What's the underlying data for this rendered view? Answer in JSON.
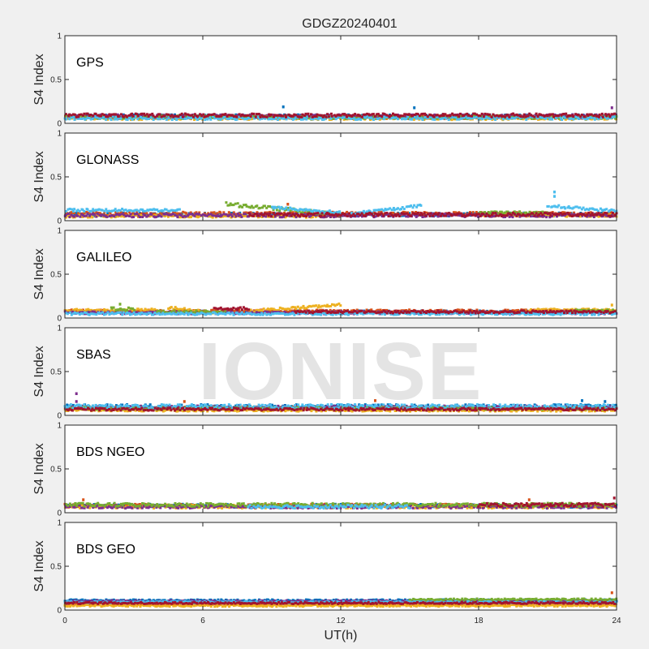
{
  "figure": {
    "title": "GDGZ20240401",
    "xlabel": "UT(h)",
    "watermark": "IONISE",
    "background": "#f0f0f0",
    "axes_background": "#ffffff"
  },
  "chart_data": {
    "type": "scatter",
    "title": "GDGZ20240401",
    "xlabel": "UT(h)",
    "ylabel": "S4 Index",
    "xlim": [
      0,
      24
    ],
    "ylim": [
      0,
      1
    ],
    "xticks": [
      0,
      6,
      12,
      18,
      24
    ],
    "yticks": [
      0,
      0.5,
      1
    ],
    "ytick_labels": [
      "0",
      "0.5",
      "1"
    ],
    "grid": false,
    "series_colors": [
      "#0072bd",
      "#d95319",
      "#edb120",
      "#7e2f8e",
      "#77ac30",
      "#4dbeee",
      "#a2142f"
    ],
    "panels": [
      {
        "name": "GPS",
        "series": [
          {
            "color": "#0072bd",
            "segments": [
              {
                "x": [
                  0,
                  24
                ],
                "level": 0.08,
                "spread": 0.02
              }
            ],
            "spikes": [
              [
                9.5,
                0.19
              ],
              [
                15.2,
                0.18
              ]
            ]
          },
          {
            "color": "#d95319",
            "segments": [
              {
                "x": [
                  0,
                  24
                ],
                "level": 0.07,
                "spread": 0.02
              }
            ],
            "spikes": []
          },
          {
            "color": "#edb120",
            "segments": [
              {
                "x": [
                  0,
                  24
                ],
                "level": 0.06,
                "spread": 0.02
              }
            ],
            "spikes": []
          },
          {
            "color": "#7e2f8e",
            "segments": [
              {
                "x": [
                  0,
                  24
                ],
                "level": 0.08,
                "spread": 0.02
              }
            ],
            "spikes": [
              [
                23.8,
                0.18
              ]
            ]
          },
          {
            "color": "#77ac30",
            "segments": [
              {
                "x": [
                  0,
                  24
                ],
                "level": 0.07,
                "spread": 0.02
              }
            ],
            "spikes": []
          },
          {
            "color": "#4dbeee",
            "segments": [
              {
                "x": [
                  0,
                  24
                ],
                "level": 0.06,
                "spread": 0.02
              }
            ],
            "spikes": []
          },
          {
            "color": "#a2142f",
            "segments": [
              {
                "x": [
                  0,
                  24
                ],
                "level": 0.09,
                "spread": 0.02
              }
            ],
            "spikes": []
          }
        ]
      },
      {
        "name": "GLONASS",
        "series": [
          {
            "color": "#0072bd",
            "segments": [
              {
                "x": [
                  0,
                  24
                ],
                "level": 0.07,
                "spread": 0.02
              }
            ],
            "spikes": []
          },
          {
            "color": "#d95319",
            "segments": [
              {
                "x": [
                  0,
                  24
                ],
                "level": 0.08,
                "spread": 0.02
              }
            ],
            "spikes": [
              [
                9.7,
                0.19
              ]
            ]
          },
          {
            "color": "#edb120",
            "segments": [
              {
                "x": [
                  0,
                  12
                ],
                "level": 0.05,
                "spread": 0.015
              },
              {
                "x": [
                  18,
                  24
                ],
                "level": 0.06,
                "spread": 0.015
              }
            ],
            "spikes": []
          },
          {
            "color": "#7e2f8e",
            "segments": [
              {
                "x": [
                  0,
                  24
                ],
                "level": 0.06,
                "spread": 0.02
              }
            ],
            "spikes": []
          },
          {
            "color": "#77ac30",
            "segments": [
              {
                "x": [
                  7,
                  12
                ],
                "level": 0.19,
                "slope": -0.12,
                "spread": 0.02
              },
              {
                "x": [
                  18,
                  21
                ],
                "level": 0.09,
                "spread": 0.015
              }
            ],
            "spikes": []
          },
          {
            "color": "#4dbeee",
            "segments": [
              {
                "x": [
                  0,
                  5
                ],
                "level": 0.12,
                "spread": 0.015
              },
              {
                "x": [
                  9,
                  12
                ],
                "level": 0.15,
                "slope": -0.06,
                "spread": 0.015
              },
              {
                "x": [
                  12.5,
                  15.5
                ],
                "level": 0.08,
                "slope": 0.09,
                "spread": 0.015
              },
              {
                "x": [
                  21,
                  24
                ],
                "level": 0.17,
                "slope": -0.06,
                "spread": 0.015
              }
            ],
            "spikes": [
              [
                21.3,
                0.33
              ],
              [
                21.3,
                0.28
              ]
            ]
          },
          {
            "color": "#a2142f",
            "segments": [
              {
                "x": [
                  8,
                  24
                ],
                "level": 0.07,
                "spread": 0.02
              }
            ],
            "spikes": []
          }
        ]
      },
      {
        "name": "GALILEO",
        "series": [
          {
            "color": "#0072bd",
            "segments": [
              {
                "x": [
                  0,
                  24
                ],
                "level": 0.07,
                "spread": 0.015
              }
            ],
            "spikes": []
          },
          {
            "color": "#d95319",
            "segments": [
              {
                "x": [
                  0,
                  24
                ],
                "level": 0.08,
                "spread": 0.015
              }
            ],
            "spikes": []
          },
          {
            "color": "#edb120",
            "segments": [
              {
                "x": [
                  0,
                  4
                ],
                "level": 0.09,
                "spread": 0.015
              },
              {
                "x": [
                  4.5,
                  6
                ],
                "level": 0.12,
                "slope": -0.05,
                "spread": 0.015
              },
              {
                "x": [
                  8,
                  12
                ],
                "level": 0.08,
                "slope": 0.07,
                "spread": 0.015
              },
              {
                "x": [
                  20,
                  24
                ],
                "level": 0.09,
                "spread": 0.015
              }
            ],
            "spikes": [
              [
                23.8,
                0.15
              ]
            ]
          },
          {
            "color": "#7e2f8e",
            "segments": [
              {
                "x": [
                  0,
                  24
                ],
                "level": 0.06,
                "spread": 0.015
              }
            ],
            "spikes": []
          },
          {
            "color": "#77ac30",
            "segments": [
              {
                "x": [
                  2,
                  3
                ],
                "level": 0.1,
                "spread": 0.02
              },
              {
                "x": [
                  4,
                  7
                ],
                "level": 0.07,
                "spread": 0.015
              },
              {
                "x": [
                  22,
                  24
                ],
                "level": 0.08,
                "spread": 0.015
              }
            ],
            "spikes": [
              [
                2.4,
                0.16
              ]
            ]
          },
          {
            "color": "#4dbeee",
            "segments": [
              {
                "x": [
                  0,
                  24
                ],
                "level": 0.05,
                "spread": 0.015
              }
            ],
            "spikes": []
          },
          {
            "color": "#a2142f",
            "segments": [
              {
                "x": [
                  6.5,
                  8
                ],
                "level": 0.11,
                "spread": 0.015
              },
              {
                "x": [
                  10,
                  24
                ],
                "level": 0.07,
                "spread": 0.015
              }
            ],
            "spikes": []
          }
        ]
      },
      {
        "name": "SBAS",
        "series": [
          {
            "color": "#0072bd",
            "segments": [
              {
                "x": [
                  0,
                  24
                ],
                "level": 0.1,
                "spread": 0.025
              }
            ],
            "spikes": [
              [
                22.5,
                0.17
              ],
              [
                23.5,
                0.16
              ]
            ]
          },
          {
            "color": "#d95319",
            "segments": [
              {
                "x": [
                  0,
                  24
                ],
                "level": 0.08,
                "spread": 0.02
              }
            ],
            "spikes": [
              [
                5.2,
                0.16
              ],
              [
                13.5,
                0.17
              ]
            ]
          },
          {
            "color": "#edb120",
            "segments": [
              {
                "x": [
                  0,
                  24
                ],
                "level": 0.06,
                "spread": 0.015
              }
            ],
            "spikes": []
          },
          {
            "color": "#7e2f8e",
            "segments": [
              {
                "x": [
                  0,
                  24
                ],
                "level": 0.09,
                "spread": 0.02
              }
            ],
            "spikes": [
              [
                0.5,
                0.25
              ],
              [
                0.5,
                0.16
              ]
            ]
          },
          {
            "color": "#77ac30",
            "segments": [
              {
                "x": [
                  0,
                  24
                ],
                "level": 0.08,
                "spread": 0.015
              }
            ],
            "spikes": []
          },
          {
            "color": "#4dbeee",
            "segments": [
              {
                "x": [
                  0,
                  24
                ],
                "level": 0.1,
                "spread": 0.025
              }
            ],
            "spikes": []
          },
          {
            "color": "#a2142f",
            "segments": [
              {
                "x": [
                  0,
                  24
                ],
                "level": 0.07,
                "spread": 0.015
              }
            ],
            "spikes": []
          }
        ]
      },
      {
        "name": "BDS NGEO",
        "series": [
          {
            "color": "#0072bd",
            "segments": [
              {
                "x": [
                  0,
                  24
                ],
                "level": 0.08,
                "spread": 0.02
              }
            ],
            "spikes": []
          },
          {
            "color": "#d95319",
            "segments": [
              {
                "x": [
                  0,
                  24
                ],
                "level": 0.08,
                "spread": 0.02
              }
            ],
            "spikes": [
              [
                0.8,
                0.15
              ],
              [
                20.2,
                0.15
              ]
            ]
          },
          {
            "color": "#edb120",
            "segments": [
              {
                "x": [
                  0,
                  24
                ],
                "level": 0.07,
                "spread": 0.02
              }
            ],
            "spikes": []
          },
          {
            "color": "#7e2f8e",
            "segments": [
              {
                "x": [
                  0,
                  24
                ],
                "level": 0.07,
                "spread": 0.02
              }
            ],
            "spikes": []
          },
          {
            "color": "#77ac30",
            "segments": [
              {
                "x": [
                  0,
                  24
                ],
                "level": 0.09,
                "spread": 0.02
              }
            ],
            "spikes": []
          },
          {
            "color": "#4dbeee",
            "segments": [
              {
                "x": [
                  8,
                  15
                ],
                "level": 0.07,
                "spread": 0.02
              }
            ],
            "spikes": []
          },
          {
            "color": "#a2142f",
            "segments": [
              {
                "x": [
                  18,
                  24
                ],
                "level": 0.09,
                "spread": 0.02
              }
            ],
            "spikes": [
              [
                23.9,
                0.17
              ]
            ]
          }
        ]
      },
      {
        "name": "BDS GEO",
        "series": [
          {
            "color": "#0072bd",
            "segments": [
              {
                "x": [
                  0,
                  24
                ],
                "level": 0.11,
                "spread": 0.01
              }
            ],
            "spikes": []
          },
          {
            "color": "#d95319",
            "segments": [
              {
                "x": [
                  0,
                  24
                ],
                "level": 0.07,
                "spread": 0.01
              }
            ],
            "spikes": [
              [
                23.8,
                0.2
              ]
            ]
          },
          {
            "color": "#edb120",
            "segments": [
              {
                "x": [
                  0,
                  24
                ],
                "level": 0.05,
                "spread": 0.01
              }
            ],
            "spikes": []
          },
          {
            "color": "#7e2f8e",
            "segments": [
              {
                "x": [
                  0,
                  24
                ],
                "level": 0.1,
                "spread": 0.01
              }
            ],
            "spikes": []
          },
          {
            "color": "#77ac30",
            "segments": [
              {
                "x": [
                  15,
                  24
                ],
                "level": 0.12,
                "spread": 0.01
              }
            ],
            "spikes": []
          },
          {
            "color": "#4dbeee",
            "segments": [
              {
                "x": [
                  0,
                  24
                ],
                "level": 0.09,
                "spread": 0.01
              }
            ],
            "spikes": []
          },
          {
            "color": "#a2142f",
            "segments": [
              {
                "x": [
                  0,
                  24
                ],
                "level": 0.08,
                "spread": 0.01
              }
            ],
            "spikes": []
          }
        ]
      }
    ]
  }
}
